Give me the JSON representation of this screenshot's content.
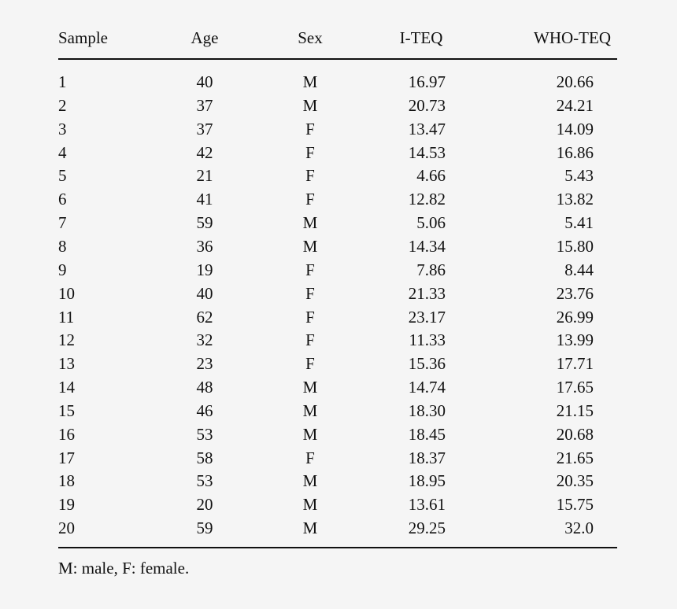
{
  "table": {
    "headers": [
      "Sample",
      "Age",
      "Sex",
      "I-TEQ",
      "WHO-TEQ"
    ],
    "rows": [
      [
        "1",
        "40",
        "M",
        "16.97",
        "20.66"
      ],
      [
        "2",
        "37",
        "M",
        "20.73",
        "24.21"
      ],
      [
        "3",
        "37",
        "F",
        "13.47",
        "14.09"
      ],
      [
        "4",
        "42",
        "F",
        "14.53",
        "16.86"
      ],
      [
        "5",
        "21",
        "F",
        "4.66",
        "5.43"
      ],
      [
        "6",
        "41",
        "F",
        "12.82",
        "13.82"
      ],
      [
        "7",
        "59",
        "M",
        "5.06",
        "5.41"
      ],
      [
        "8",
        "36",
        "M",
        "14.34",
        "15.80"
      ],
      [
        "9",
        "19",
        "F",
        "7.86",
        "8.44"
      ],
      [
        "10",
        "40",
        "F",
        "21.33",
        "23.76"
      ],
      [
        "11",
        "62",
        "F",
        "23.17",
        "26.99"
      ],
      [
        "12",
        "32",
        "F",
        "11.33",
        "13.99"
      ],
      [
        "13",
        "23",
        "F",
        "15.36",
        "17.71"
      ],
      [
        "14",
        "48",
        "M",
        "14.74",
        "17.65"
      ],
      [
        "15",
        "46",
        "M",
        "18.30",
        "21.15"
      ],
      [
        "16",
        "53",
        "M",
        "18.45",
        "20.68"
      ],
      [
        "17",
        "58",
        "F",
        "18.37",
        "21.65"
      ],
      [
        "18",
        "53",
        "M",
        "18.95",
        "20.35"
      ],
      [
        "19",
        "20",
        "M",
        "13.61",
        "15.75"
      ],
      [
        "20",
        "59",
        "M",
        "29.25",
        "32.0"
      ]
    ]
  },
  "footnote": "M: male, F: female."
}
